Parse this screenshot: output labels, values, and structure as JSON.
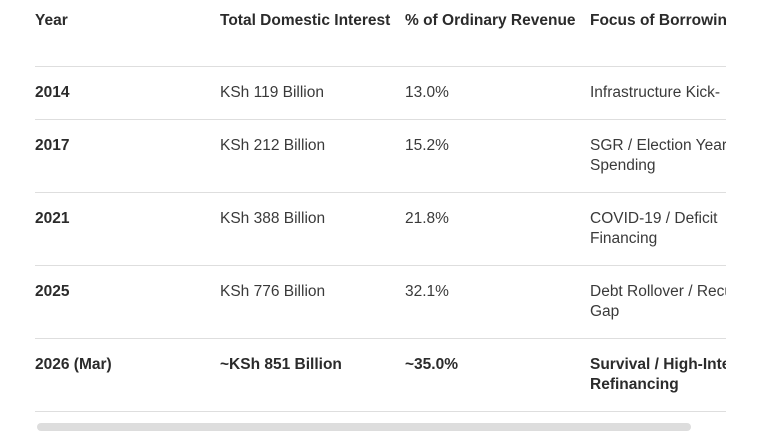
{
  "table": {
    "headers": [
      "Year",
      "Total Domestic Interest",
      "% of Ordinary Revenue",
      "Focus of Borrowing"
    ],
    "rows": [
      {
        "year": "2014",
        "interest": "KSh 119 Billion",
        "pct": "13.0%",
        "focus": "Infrastructure Kick-"
      },
      {
        "year": "2017",
        "interest": "KSh 212 Billion",
        "pct": "15.2%",
        "focus": "SGR / Election Year Spending"
      },
      {
        "year": "2021",
        "interest": "KSh 388 Billion",
        "pct": "21.8%",
        "focus": "COVID-19 / Deficit Financing"
      },
      {
        "year": "2025",
        "interest": "KSh 776 Billion",
        "pct": "32.1%",
        "focus": "Debt Rollover / Recurrent Gap"
      },
      {
        "year": "2026 (Mar)",
        "interest": "~KSh 851 Billion",
        "pct": "~35.0%",
        "focus": "Survival / High-Interest Refinancing"
      }
    ]
  }
}
